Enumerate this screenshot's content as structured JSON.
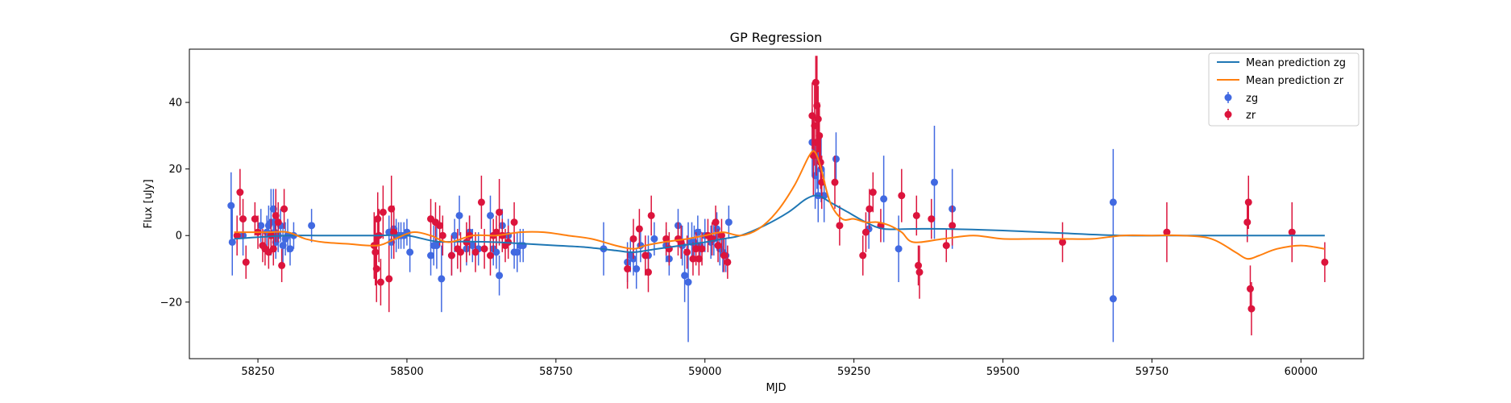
{
  "chart_data": {
    "type": "scatter",
    "title": "GP Regression",
    "xlabel": "MJD",
    "ylabel": "Flux [uJy]",
    "xlim": [
      58135,
      60105
    ],
    "ylim": [
      -37,
      56
    ],
    "xticks": [
      58250,
      58500,
      58750,
      59000,
      59250,
      59500,
      59750,
      60000
    ],
    "yticks": [
      -20,
      0,
      20,
      40
    ],
    "legend_placement": "top-right",
    "grid": false,
    "colors": {
      "zg_line": "#1f77b4",
      "zr_line": "#ff7f0e",
      "zg_points": "#4169e1",
      "zr_points": "#dc143c"
    },
    "legend": [
      "Mean prediction zg",
      "Mean prediction zr",
      "zg",
      "zr"
    ],
    "series": [
      {
        "name": "Mean prediction zg",
        "kind": "line",
        "x": [
          58210,
          58250,
          58300,
          58350,
          58400,
          58450,
          58500,
          58550,
          58600,
          58650,
          58700,
          58750,
          58800,
          58850,
          58880,
          58920,
          58960,
          59000,
          59030,
          59060,
          59100,
          59140,
          59170,
          59190,
          59210,
          59240,
          59270,
          59300,
          59350,
          59400,
          59500,
          59600,
          59700,
          59800,
          59900,
          60000,
          60040
        ],
        "y": [
          -1,
          -0.5,
          0,
          0,
          0,
          0,
          0,
          -1.8,
          -1.8,
          -2,
          -2.5,
          -3,
          -3.5,
          -4.5,
          -5,
          -4,
          -3,
          -2,
          -1,
          0,
          3,
          7,
          11,
          12,
          10,
          7,
          4,
          2,
          2,
          2,
          1.5,
          0.7,
          0,
          0,
          0,
          0,
          0
        ]
      },
      {
        "name": "Mean prediction zr",
        "kind": "line",
        "x": [
          58210,
          58240,
          58270,
          58300,
          58330,
          58360,
          58400,
          58450,
          58480,
          58510,
          58540,
          58570,
          58610,
          58650,
          58690,
          58730,
          58770,
          58810,
          58850,
          58880,
          58900,
          58930,
          58970,
          59000,
          59030,
          59060,
          59090,
          59120,
          59150,
          59175,
          59185,
          59195,
          59210,
          59230,
          59250,
          59270,
          59290,
          59310,
          59330,
          59350,
          59400,
          59450,
          59500,
          59550,
          59600,
          59650,
          59700,
          59750,
          59800,
          59850,
          59890,
          59910,
          59930,
          59960,
          60000,
          60040
        ],
        "y": [
          1,
          1,
          1,
          1,
          -1,
          -2,
          -2.5,
          -3,
          -1,
          1,
          0,
          -2,
          0,
          0,
          1,
          1,
          0,
          -1,
          -3,
          -4,
          -3,
          -2,
          -1,
          0,
          1,
          0,
          2,
          7,
          15,
          24,
          25,
          20,
          10,
          5,
          5,
          4,
          4,
          3,
          1,
          -2,
          -1,
          0,
          -1,
          -1,
          -1,
          -1,
          0,
          0,
          0,
          -1,
          -5,
          -7,
          -6,
          -4,
          -3,
          -4
        ]
      },
      {
        "name": "zg",
        "kind": "errorbar",
        "points": [
          [
            58205,
            9,
            10
          ],
          [
            58207,
            -2,
            10
          ],
          [
            58225,
            0,
            6
          ],
          [
            58255,
            3,
            5
          ],
          [
            58265,
            1,
            5
          ],
          [
            58268,
            3,
            6
          ],
          [
            58272,
            4,
            10
          ],
          [
            58276,
            8,
            6
          ],
          [
            58278,
            1,
            6
          ],
          [
            58280,
            -2,
            5
          ],
          [
            58284,
            0,
            5
          ],
          [
            58288,
            3,
            5
          ],
          [
            58292,
            -3,
            6
          ],
          [
            58296,
            -1,
            5
          ],
          [
            58300,
            0,
            5
          ],
          [
            58304,
            -4,
            5
          ],
          [
            58310,
            0,
            4
          ],
          [
            58340,
            3,
            5
          ],
          [
            58470,
            1,
            5
          ],
          [
            58474,
            -2,
            5
          ],
          [
            58478,
            2,
            5
          ],
          [
            58482,
            0,
            5
          ],
          [
            58486,
            0,
            4
          ],
          [
            58490,
            0,
            4
          ],
          [
            58495,
            0,
            4
          ],
          [
            58500,
            1,
            4
          ],
          [
            58505,
            -5,
            6
          ],
          [
            58540,
            -6,
            6
          ],
          [
            58545,
            -3,
            6
          ],
          [
            58550,
            -3,
            7
          ],
          [
            58558,
            -13,
            10
          ],
          [
            58575,
            -6,
            6
          ],
          [
            58580,
            0,
            5
          ],
          [
            58588,
            6,
            6
          ],
          [
            58600,
            -4,
            5
          ],
          [
            58605,
            1,
            5
          ],
          [
            58610,
            -3,
            5
          ],
          [
            58620,
            -4,
            5
          ],
          [
            58640,
            6,
            6
          ],
          [
            58645,
            -4,
            5
          ],
          [
            58650,
            -5,
            5
          ],
          [
            58655,
            -12,
            6
          ],
          [
            58660,
            3,
            5
          ],
          [
            58670,
            0,
            5
          ],
          [
            58680,
            -5,
            5
          ],
          [
            58685,
            -5,
            6
          ],
          [
            58690,
            -3,
            5
          ],
          [
            58695,
            -3,
            5
          ],
          [
            58830,
            -4,
            8
          ],
          [
            58870,
            -8,
            6
          ],
          [
            58875,
            -6,
            5
          ],
          [
            58880,
            -7,
            5
          ],
          [
            58885,
            -10,
            6
          ],
          [
            58892,
            -3,
            5
          ],
          [
            58905,
            -6,
            6
          ],
          [
            58915,
            -1,
            5
          ],
          [
            58935,
            -3,
            5
          ],
          [
            58940,
            -7,
            5
          ],
          [
            58955,
            3,
            5
          ],
          [
            58962,
            -3,
            6
          ],
          [
            58966,
            -12,
            8
          ],
          [
            58972,
            -14,
            18
          ],
          [
            58978,
            -2,
            6
          ],
          [
            58982,
            -2,
            5
          ],
          [
            58988,
            1,
            5
          ],
          [
            58992,
            -3,
            5
          ],
          [
            59000,
            0,
            5
          ],
          [
            59010,
            -2,
            5
          ],
          [
            59015,
            -1,
            5
          ],
          [
            59020,
            2,
            5
          ],
          [
            59025,
            -4,
            5
          ],
          [
            59030,
            -5,
            6
          ],
          [
            59035,
            -6,
            5
          ],
          [
            59040,
            4,
            5
          ],
          [
            59180,
            28,
            10
          ],
          [
            59185,
            18,
            10
          ],
          [
            59188,
            24,
            10
          ],
          [
            59190,
            12,
            8
          ],
          [
            59195,
            20,
            10
          ],
          [
            59200,
            12,
            8
          ],
          [
            59220,
            23,
            8
          ],
          [
            59275,
            2,
            6
          ],
          [
            59300,
            11,
            13
          ],
          [
            59325,
            -4,
            10
          ],
          [
            59385,
            16,
            17
          ],
          [
            59415,
            8,
            12
          ],
          [
            59685,
            10,
            16
          ],
          [
            59685,
            -19,
            13
          ]
        ]
      },
      {
        "name": "zr",
        "kind": "errorbar",
        "points": [
          [
            58215,
            0,
            6
          ],
          [
            58220,
            13,
            7
          ],
          [
            58225,
            5,
            6
          ],
          [
            58230,
            -8,
            5
          ],
          [
            58245,
            5,
            5
          ],
          [
            58250,
            1,
            5
          ],
          [
            58258,
            -3,
            5
          ],
          [
            58262,
            -4,
            5
          ],
          [
            58268,
            -5,
            5
          ],
          [
            58272,
            0,
            5
          ],
          [
            58276,
            -4,
            5
          ],
          [
            58280,
            6,
            8
          ],
          [
            58284,
            4,
            6
          ],
          [
            58290,
            -9,
            5
          ],
          [
            58294,
            8,
            6
          ],
          [
            58445,
            -3,
            10
          ],
          [
            58447,
            -5,
            10
          ],
          [
            58449,
            -10,
            10
          ],
          [
            58451,
            5,
            8
          ],
          [
            58453,
            0,
            8
          ],
          [
            58456,
            -14,
            7
          ],
          [
            58460,
            7,
            8
          ],
          [
            58470,
            -13,
            10
          ],
          [
            58474,
            8,
            10
          ],
          [
            58478,
            1,
            8
          ],
          [
            58540,
            5,
            6
          ],
          [
            58548,
            4,
            6
          ],
          [
            58555,
            3,
            6
          ],
          [
            58560,
            0,
            6
          ],
          [
            58575,
            -6,
            6
          ],
          [
            58585,
            -4,
            6
          ],
          [
            58590,
            -5,
            6
          ],
          [
            58600,
            -2,
            6
          ],
          [
            58605,
            0,
            6
          ],
          [
            58615,
            -5,
            6
          ],
          [
            58625,
            10,
            8
          ],
          [
            58630,
            -4,
            6
          ],
          [
            58640,
            -6,
            6
          ],
          [
            58645,
            0,
            5
          ],
          [
            58650,
            1,
            5
          ],
          [
            58655,
            7,
            10
          ],
          [
            58660,
            0,
            5
          ],
          [
            58665,
            -3,
            5
          ],
          [
            58670,
            -2,
            5
          ],
          [
            58680,
            4,
            6
          ],
          [
            58870,
            -10,
            6
          ],
          [
            58880,
            -1,
            6
          ],
          [
            58890,
            2,
            6
          ],
          [
            58900,
            -6,
            6
          ],
          [
            58905,
            -11,
            6
          ],
          [
            58910,
            6,
            6
          ],
          [
            58935,
            -1,
            5
          ],
          [
            58940,
            -4,
            5
          ],
          [
            58955,
            -1,
            5
          ],
          [
            58960,
            -2,
            5
          ],
          [
            58970,
            -5,
            5
          ],
          [
            58980,
            -7,
            5
          ],
          [
            58985,
            -4,
            5
          ],
          [
            58990,
            -7,
            5
          ],
          [
            58995,
            -4,
            5
          ],
          [
            59005,
            0,
            5
          ],
          [
            59012,
            -1,
            5
          ],
          [
            59018,
            4,
            5
          ],
          [
            59022,
            -3,
            5
          ],
          [
            59028,
            0,
            5
          ],
          [
            59032,
            -6,
            5
          ],
          [
            59038,
            -8,
            5
          ],
          [
            59180,
            36,
            10
          ],
          [
            59182,
            24,
            12
          ],
          [
            59184,
            33,
            12
          ],
          [
            59186,
            46,
            8
          ],
          [
            59187,
            28,
            10
          ],
          [
            59188,
            39,
            15
          ],
          [
            59190,
            35,
            10
          ],
          [
            59192,
            30,
            10
          ],
          [
            59194,
            22,
            8
          ],
          [
            59196,
            16,
            8
          ],
          [
            59218,
            16,
            8
          ],
          [
            59226,
            3,
            6
          ],
          [
            59265,
            -6,
            6
          ],
          [
            59270,
            1,
            6
          ],
          [
            59276,
            8,
            6
          ],
          [
            59282,
            13,
            6
          ],
          [
            59295,
            3,
            5
          ],
          [
            59330,
            12,
            8
          ],
          [
            59355,
            6,
            6
          ],
          [
            59358,
            -9,
            6
          ],
          [
            59360,
            -11,
            8
          ],
          [
            59380,
            5,
            6
          ],
          [
            59405,
            -3,
            5
          ],
          [
            59415,
            3,
            6
          ],
          [
            59600,
            -2,
            6
          ],
          [
            59775,
            1,
            9
          ],
          [
            59910,
            4,
            6
          ],
          [
            59912,
            10,
            8
          ],
          [
            59915,
            -16,
            7
          ],
          [
            59917,
            -22,
            8
          ],
          [
            59985,
            1,
            9
          ],
          [
            60040,
            -8,
            6
          ]
        ]
      }
    ]
  }
}
